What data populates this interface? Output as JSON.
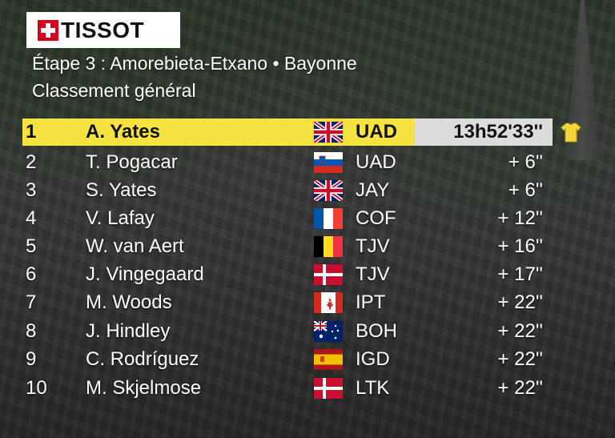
{
  "brand": {
    "name": "TISSOT",
    "cross_color": "#d4001c"
  },
  "stage": {
    "title": "Étape 3 : Amorebieta-Etxano • Bayonne"
  },
  "classification": {
    "title": "Classement général"
  },
  "colors": {
    "leader_bar": "#f6e240",
    "time_box": "#dcdcdc",
    "jersey": "#f2d63a"
  },
  "standings": [
    {
      "pos": "1",
      "rider": "A. Yates",
      "flag": "gb-flag-icon",
      "team": "UAD",
      "gap": "13h52'33''"
    },
    {
      "pos": "2",
      "rider": "T. Pogacar",
      "flag": "si-flag-icon",
      "team": "UAD",
      "gap": "+  6''"
    },
    {
      "pos": "3",
      "rider": "S. Yates",
      "flag": "gb-flag-icon",
      "team": "JAY",
      "gap": "+  6''"
    },
    {
      "pos": "4",
      "rider": "V. Lafay",
      "flag": "fr-flag-icon",
      "team": "COF",
      "gap": "+ 12''"
    },
    {
      "pos": "5",
      "rider": "W. van Aert",
      "flag": "be-flag-icon",
      "team": "TJV",
      "gap": "+ 16''"
    },
    {
      "pos": "6",
      "rider": "J. Vingegaard",
      "flag": "dk-flag-icon",
      "team": "TJV",
      "gap": "+ 17''"
    },
    {
      "pos": "7",
      "rider": "M. Woods",
      "flag": "ca-flag-icon",
      "team": "IPT",
      "gap": "+ 22''"
    },
    {
      "pos": "8",
      "rider": "J. Hindley",
      "flag": "au-flag-icon",
      "team": "BOH",
      "gap": "+ 22''"
    },
    {
      "pos": "9",
      "rider": "C. Rodríguez",
      "flag": "es-flag-icon",
      "team": "IGD",
      "gap": "+ 22''"
    },
    {
      "pos": "10",
      "rider": "M. Skjelmose",
      "flag": "dk-flag-icon",
      "team": "LTK",
      "gap": "+ 22''"
    }
  ]
}
